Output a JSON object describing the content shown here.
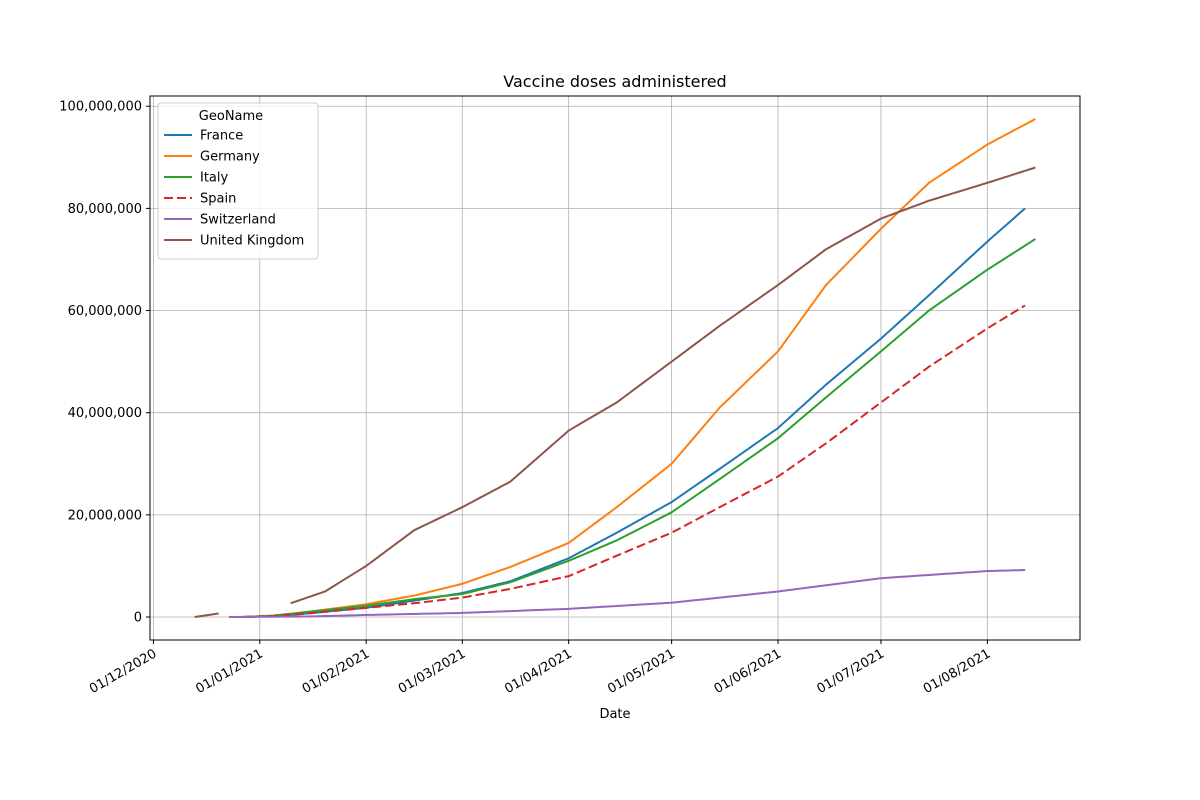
{
  "chart_data": {
    "type": "line",
    "title": "Vaccine doses administered",
    "xlabel": "Date",
    "ylabel": "",
    "xlim": [
      "2020-11-30",
      "2021-08-28"
    ],
    "ylim": [
      -4500000,
      102000000
    ],
    "grid": true,
    "legend": {
      "title": "GeoName",
      "placement": "top-left"
    },
    "x_ticks": [
      "2020-12-01",
      "2021-01-01",
      "2021-02-01",
      "2021-03-01",
      "2021-04-01",
      "2021-05-01",
      "2021-06-01",
      "2021-07-01",
      "2021-08-01"
    ],
    "x_tick_labels": [
      "01/12/2020",
      "01/01/2021",
      "01/02/2021",
      "01/03/2021",
      "01/04/2021",
      "01/05/2021",
      "01/06/2021",
      "01/07/2021",
      "01/08/2021"
    ],
    "y_ticks": [
      0,
      20000000,
      40000000,
      60000000,
      80000000,
      100000000
    ],
    "y_tick_labels": [
      "0",
      "20,000,000",
      "40,000,000",
      "60,000,000",
      "80,000,000",
      "100,000,000"
    ],
    "series": [
      {
        "name": "France",
        "color": "#1f77b4",
        "dash": "solid",
        "points": [
          [
            "2020-12-27",
            0
          ],
          [
            "2021-01-05",
            200000
          ],
          [
            "2021-01-15",
            700000
          ],
          [
            "2021-02-01",
            1800000
          ],
          [
            "2021-02-15",
            3200000
          ],
          [
            "2021-03-01",
            4700000
          ],
          [
            "2021-03-15",
            7000000
          ],
          [
            "2021-04-01",
            11500000
          ],
          [
            "2021-04-15",
            16500000
          ],
          [
            "2021-05-01",
            22500000
          ],
          [
            "2021-05-15",
            29000000
          ],
          [
            "2021-06-01",
            37000000
          ],
          [
            "2021-06-15",
            45500000
          ],
          [
            "2021-07-01",
            54500000
          ],
          [
            "2021-07-15",
            63000000
          ],
          [
            "2021-08-01",
            73500000
          ],
          [
            "2021-08-12",
            80000000
          ]
        ]
      },
      {
        "name": "Germany",
        "color": "#ff7f0e",
        "dash": "solid",
        "points": [
          [
            "2020-12-27",
            0
          ],
          [
            "2021-01-05",
            300000
          ],
          [
            "2021-01-15",
            1000000
          ],
          [
            "2021-02-01",
            2500000
          ],
          [
            "2021-02-15",
            4200000
          ],
          [
            "2021-03-01",
            6500000
          ],
          [
            "2021-03-15",
            9800000
          ],
          [
            "2021-04-01",
            14500000
          ],
          [
            "2021-04-15",
            21500000
          ],
          [
            "2021-05-01",
            30000000
          ],
          [
            "2021-05-15",
            41000000
          ],
          [
            "2021-06-01",
            52000000
          ],
          [
            "2021-06-15",
            65000000
          ],
          [
            "2021-07-01",
            76000000
          ],
          [
            "2021-07-15",
            85000000
          ],
          [
            "2021-08-01",
            92500000
          ],
          [
            "2021-08-15",
            97500000
          ]
        ]
      },
      {
        "name": "Italy",
        "color": "#2ca02c",
        "dash": "solid",
        "points": [
          [
            "2020-12-27",
            0
          ],
          [
            "2021-01-05",
            250000
          ],
          [
            "2021-01-15",
            1000000
          ],
          [
            "2021-02-01",
            2200000
          ],
          [
            "2021-02-15",
            3500000
          ],
          [
            "2021-03-01",
            4500000
          ],
          [
            "2021-03-15",
            6800000
          ],
          [
            "2021-04-01",
            11000000
          ],
          [
            "2021-04-15",
            15000000
          ],
          [
            "2021-05-01",
            20500000
          ],
          [
            "2021-05-15",
            27000000
          ],
          [
            "2021-06-01",
            35000000
          ],
          [
            "2021-06-15",
            43000000
          ],
          [
            "2021-07-01",
            52000000
          ],
          [
            "2021-07-15",
            60000000
          ],
          [
            "2021-08-01",
            68000000
          ],
          [
            "2021-08-15",
            74000000
          ]
        ]
      },
      {
        "name": "Spain",
        "color": "#d62728",
        "dash": "dashed",
        "points": [
          [
            "2020-12-27",
            0
          ],
          [
            "2021-01-05",
            200000
          ],
          [
            "2021-01-15",
            700000
          ],
          [
            "2021-02-01",
            1800000
          ],
          [
            "2021-02-15",
            2700000
          ],
          [
            "2021-03-01",
            3800000
          ],
          [
            "2021-03-15",
            5500000
          ],
          [
            "2021-04-01",
            8000000
          ],
          [
            "2021-04-15",
            12000000
          ],
          [
            "2021-05-01",
            16500000
          ],
          [
            "2021-05-15",
            21500000
          ],
          [
            "2021-06-01",
            27500000
          ],
          [
            "2021-06-15",
            34000000
          ],
          [
            "2021-07-01",
            42000000
          ],
          [
            "2021-07-15",
            49000000
          ],
          [
            "2021-08-01",
            56500000
          ],
          [
            "2021-08-12",
            61000000
          ]
        ]
      },
      {
        "name": "Switzerland",
        "color": "#9467bd",
        "dash": "solid",
        "points": [
          [
            "2020-12-23",
            0
          ],
          [
            "2021-01-15",
            100000
          ],
          [
            "2021-02-01",
            400000
          ],
          [
            "2021-03-01",
            800000
          ],
          [
            "2021-04-01",
            1600000
          ],
          [
            "2021-05-01",
            2800000
          ],
          [
            "2021-06-01",
            5000000
          ],
          [
            "2021-07-01",
            7600000
          ],
          [
            "2021-08-01",
            9000000
          ],
          [
            "2021-08-12",
            9200000
          ]
        ]
      },
      {
        "name": "United Kingdom",
        "color": "#8c564b",
        "dash": "solid",
        "segments": [
          [
            [
              "2020-12-13",
              0
            ],
            [
              "2020-12-20",
              700000
            ]
          ],
          [
            [
              "2021-01-10",
              2700000
            ],
            [
              "2021-01-20",
              5000000
            ],
            [
              "2021-02-01",
              10000000
            ],
            [
              "2021-02-15",
              17000000
            ],
            [
              "2021-03-01",
              21500000
            ],
            [
              "2021-03-15",
              26500000
            ],
            [
              "2021-04-01",
              36500000
            ],
            [
              "2021-04-15",
              42000000
            ],
            [
              "2021-05-01",
              50000000
            ],
            [
              "2021-05-15",
              57000000
            ],
            [
              "2021-06-01",
              65000000
            ],
            [
              "2021-06-15",
              72000000
            ],
            [
              "2021-07-01",
              78000000
            ],
            [
              "2021-07-15",
              81500000
            ],
            [
              "2021-08-01",
              85000000
            ],
            [
              "2021-08-15",
              88000000
            ]
          ]
        ]
      }
    ]
  }
}
